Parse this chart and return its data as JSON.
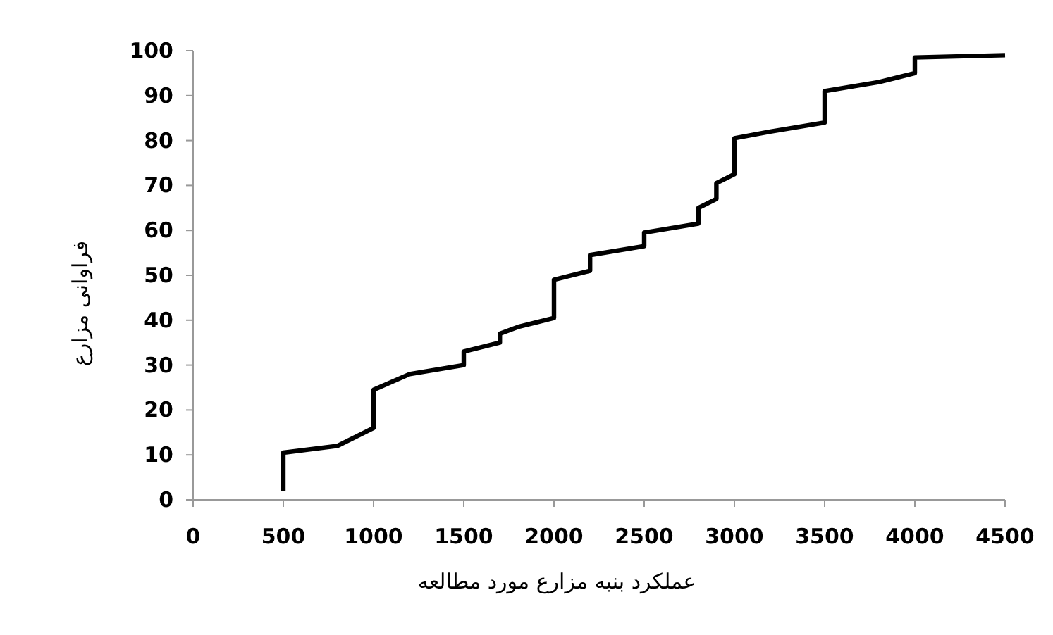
{
  "chart_data": {
    "type": "line",
    "xlabel": "عملکرد بنبه مزارع مورد مطالعه",
    "ylabel": "فراوانی مزارع",
    "series": [
      {
        "color": "#000000",
        "x": [
          500,
          500,
          800,
          1000,
          1000,
          1200,
          1500,
          1500,
          1700,
          1700,
          1800,
          2000,
          2000,
          2200,
          2200,
          2500,
          2500,
          2800,
          2800,
          2900,
          2900,
          3000,
          3000,
          3200,
          3500,
          3500,
          3800,
          4000,
          4000,
          4500
        ],
        "values": [
          2,
          10.5,
          12,
          16,
          24.5,
          28,
          30,
          33,
          35,
          37,
          38.5,
          40.5,
          49,
          51,
          54.5,
          56.5,
          59.5,
          61.5,
          65,
          67,
          70.5,
          72.5,
          80.5,
          82,
          84,
          91,
          93,
          95,
          98.5,
          99
        ]
      }
    ],
    "xlim": [
      0,
      4500
    ],
    "xticks": [
      0,
      500,
      1000,
      1500,
      2000,
      2500,
      3000,
      3500,
      4000,
      4500
    ],
    "ylim": [
      0,
      100
    ],
    "yticks": [
      0,
      10,
      20,
      30,
      40,
      50,
      60,
      70,
      80,
      90,
      100
    ],
    "grid": false,
    "marker": "none",
    "line_style": "solid"
  }
}
